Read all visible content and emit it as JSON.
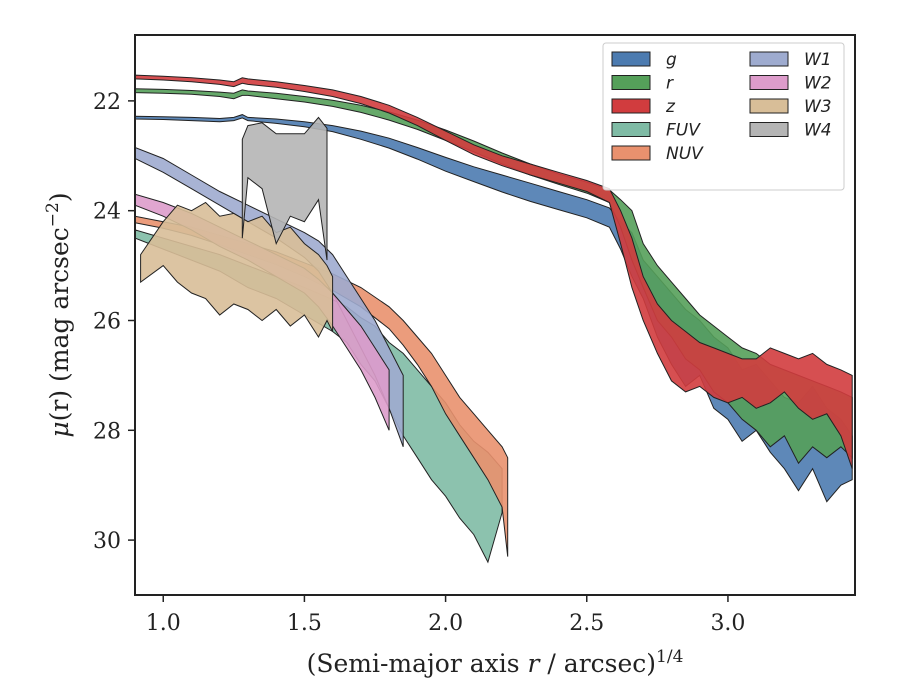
{
  "chart_data": {
    "type": "area",
    "xlabel": "(Semi-major axis r / arcsec)",
    "xlabel_italic_part": "r",
    "xlabel_exponent": "1/4",
    "ylabel": "μ(r) (mag arcsec",
    "ylabel_exponent": "−2",
    "ylabel_close": ")",
    "xlim": [
      0.9,
      3.45
    ],
    "ylim": [
      31.0,
      20.8
    ],
    "y_inverted": true,
    "x_ticks": [
      1.0,
      1.5,
      2.0,
      2.5,
      3.0
    ],
    "x_tick_labels": [
      "1.0",
      "1.5",
      "2.0",
      "2.5",
      "3.0"
    ],
    "y_ticks": [
      22,
      24,
      26,
      28,
      30
    ],
    "y_tick_labels": [
      "22",
      "24",
      "26",
      "28",
      "30"
    ],
    "grid": false,
    "legend_position": "top-right",
    "legend_columns": 2,
    "series": [
      {
        "name": "g",
        "color": "#4c7bb0",
        "x": [
          0.9,
          1.0,
          1.1,
          1.2,
          1.25,
          1.28,
          1.3,
          1.4,
          1.5,
          1.6,
          1.7,
          1.8,
          1.9,
          2.0,
          2.1,
          2.2,
          2.3,
          2.4,
          2.5,
          2.58,
          2.62,
          2.66,
          2.7,
          2.75,
          2.8,
          2.85,
          2.9,
          2.95,
          3.0,
          3.05,
          3.1,
          3.15,
          3.2,
          3.25,
          3.3,
          3.35,
          3.4,
          3.44
        ],
        "y_bright": [
          22.28,
          22.29,
          22.3,
          22.32,
          22.3,
          22.25,
          22.3,
          22.33,
          22.38,
          22.45,
          22.55,
          22.68,
          22.85,
          23.03,
          23.2,
          23.35,
          23.5,
          23.65,
          23.8,
          23.95,
          24.2,
          24.4,
          24.9,
          25.2,
          25.5,
          25.8,
          26.0,
          26.3,
          26.5,
          26.9,
          26.8,
          27.1,
          27.4,
          27.5,
          27.2,
          27.6,
          27.8,
          28.1
        ],
        "y_faint": [
          22.33,
          22.34,
          22.36,
          22.38,
          22.36,
          22.31,
          22.36,
          22.41,
          22.47,
          22.56,
          22.7,
          22.86,
          23.06,
          23.28,
          23.47,
          23.66,
          23.83,
          23.98,
          24.13,
          24.3,
          24.7,
          25.2,
          25.6,
          26.3,
          26.8,
          27.2,
          27.0,
          27.6,
          27.8,
          28.2,
          28.0,
          28.4,
          28.7,
          29.1,
          28.7,
          29.3,
          29.0,
          28.9
        ]
      },
      {
        "name": "r",
        "color": "#55a05a",
        "x": [
          0.9,
          1.0,
          1.1,
          1.2,
          1.25,
          1.28,
          1.3,
          1.4,
          1.5,
          1.6,
          1.7,
          1.8,
          1.9,
          2.0,
          2.1,
          2.2,
          2.3,
          2.4,
          2.5,
          2.58,
          2.62,
          2.66,
          2.7,
          2.75,
          2.8,
          2.85,
          2.9,
          2.95,
          3.0,
          3.05,
          3.1,
          3.15,
          3.2,
          3.25,
          3.3,
          3.35,
          3.4,
          3.44
        ],
        "y_bright": [
          21.78,
          21.79,
          21.81,
          21.84,
          21.86,
          21.8,
          21.82,
          21.86,
          21.92,
          21.99,
          22.08,
          22.2,
          22.35,
          22.53,
          22.73,
          22.95,
          23.15,
          23.33,
          23.48,
          23.62,
          23.8,
          24.0,
          24.6,
          25.0,
          25.3,
          25.6,
          25.9,
          26.1,
          26.3,
          26.5,
          26.6,
          26.8,
          26.9,
          27.0,
          27.1,
          27.2,
          27.3,
          27.4
        ],
        "y_faint": [
          21.85,
          21.86,
          21.88,
          21.92,
          21.96,
          21.9,
          21.9,
          21.96,
          22.02,
          22.1,
          22.21,
          22.35,
          22.52,
          22.72,
          22.93,
          23.15,
          23.35,
          23.52,
          23.68,
          23.85,
          24.3,
          24.9,
          25.4,
          26.0,
          26.3,
          26.7,
          26.9,
          27.3,
          27.5,
          27.8,
          28.0,
          28.3,
          28.1,
          28.6,
          28.3,
          28.5,
          28.3,
          28.5
        ]
      },
      {
        "name": "z",
        "color": "#d13c3e",
        "x": [
          0.9,
          1.0,
          1.1,
          1.2,
          1.25,
          1.28,
          1.3,
          1.4,
          1.5,
          1.6,
          1.7,
          1.8,
          1.9,
          2.0,
          2.1,
          2.2,
          2.3,
          2.4,
          2.5,
          2.58,
          2.62,
          2.66,
          2.7,
          2.75,
          2.8,
          2.85,
          2.9,
          2.95,
          3.0,
          3.05,
          3.1,
          3.15,
          3.2,
          3.25,
          3.3,
          3.35,
          3.4,
          3.44
        ],
        "y_bright": [
          21.53,
          21.55,
          21.58,
          21.62,
          21.65,
          21.58,
          21.6,
          21.65,
          21.72,
          21.8,
          21.92,
          22.08,
          22.3,
          22.55,
          22.8,
          23.0,
          23.15,
          23.3,
          23.45,
          23.6,
          24.0,
          24.5,
          25.2,
          25.7,
          26.0,
          26.2,
          26.4,
          26.5,
          26.6,
          26.7,
          26.7,
          26.5,
          26.6,
          26.7,
          26.6,
          26.8,
          26.9,
          27.0
        ],
        "y_faint": [
          21.6,
          21.62,
          21.65,
          21.7,
          21.74,
          21.68,
          21.7,
          21.75,
          21.83,
          21.92,
          22.05,
          22.22,
          22.45,
          22.72,
          22.98,
          23.18,
          23.35,
          23.5,
          23.65,
          23.85,
          24.6,
          25.4,
          26.0,
          26.6,
          27.1,
          27.3,
          27.2,
          27.4,
          27.5,
          27.4,
          27.6,
          27.5,
          27.3,
          27.6,
          27.8,
          27.7,
          28.1,
          28.7
        ]
      },
      {
        "name": "FUV",
        "color": "#7fbba5",
        "x": [
          0.9,
          1.0,
          1.1,
          1.2,
          1.3,
          1.4,
          1.5,
          1.6,
          1.65,
          1.7,
          1.75,
          1.8,
          1.85,
          1.9,
          1.95,
          2.0,
          2.05,
          2.1,
          2.15,
          2.2
        ],
        "y_bright": [
          24.35,
          24.5,
          24.65,
          24.8,
          25.0,
          25.2,
          25.4,
          25.62,
          25.75,
          25.95,
          26.1,
          26.4,
          26.6,
          26.9,
          27.2,
          27.5,
          27.9,
          28.2,
          28.4,
          28.7
        ],
        "y_faint": [
          24.5,
          24.7,
          24.9,
          25.1,
          25.4,
          25.6,
          25.9,
          26.2,
          26.4,
          26.8,
          27.1,
          27.6,
          28.1,
          28.5,
          28.9,
          29.2,
          29.6,
          29.9,
          30.4,
          29.5
        ]
      },
      {
        "name": "NUV",
        "color": "#e9916e",
        "x": [
          0.9,
          1.0,
          1.1,
          1.2,
          1.3,
          1.4,
          1.5,
          1.6,
          1.7,
          1.8,
          1.85,
          1.9,
          1.95,
          2.0,
          2.05,
          2.1,
          2.15,
          2.2,
          2.22
        ],
        "y_bright": [
          24.1,
          24.2,
          24.3,
          24.45,
          24.6,
          24.75,
          24.95,
          25.15,
          25.4,
          25.75,
          26.0,
          26.3,
          26.6,
          27.0,
          27.4,
          27.7,
          28.0,
          28.3,
          28.5
        ],
        "y_faint": [
          24.22,
          24.32,
          24.45,
          24.62,
          24.8,
          24.98,
          25.2,
          25.45,
          25.75,
          26.15,
          26.45,
          26.8,
          27.2,
          27.7,
          28.1,
          28.5,
          28.9,
          29.4,
          30.3
        ]
      },
      {
        "name": "W1",
        "color": "#9eabcf",
        "x": [
          0.9,
          1.0,
          1.1,
          1.2,
          1.3,
          1.4,
          1.5,
          1.55,
          1.6,
          1.65,
          1.7,
          1.75,
          1.8,
          1.85
        ],
        "y_bright": [
          22.85,
          23.05,
          23.35,
          23.65,
          23.9,
          24.15,
          24.4,
          24.55,
          24.8,
          25.2,
          25.6,
          26.0,
          26.5,
          27.0
        ],
        "y_faint": [
          23.05,
          23.3,
          23.6,
          23.9,
          24.2,
          24.5,
          24.85,
          25.1,
          25.5,
          26.0,
          26.5,
          27.0,
          27.6,
          28.3
        ]
      },
      {
        "name": "W2",
        "color": "#dd9ccb",
        "x": [
          0.9,
          1.0,
          1.1,
          1.2,
          1.3,
          1.4,
          1.5,
          1.55,
          1.6,
          1.65,
          1.7,
          1.75,
          1.8
        ],
        "y_bright": [
          23.7,
          23.85,
          24.05,
          24.3,
          24.55,
          24.8,
          25.05,
          25.25,
          25.5,
          25.8,
          26.1,
          26.5,
          26.9
        ],
        "y_faint": [
          23.9,
          24.1,
          24.35,
          24.65,
          24.9,
          25.2,
          25.5,
          25.75,
          26.1,
          26.5,
          26.9,
          27.4,
          28.0
        ]
      },
      {
        "name": "W3",
        "color": "#d8be98",
        "x": [
          0.92,
          1.0,
          1.05,
          1.1,
          1.15,
          1.2,
          1.25,
          1.3,
          1.35,
          1.4,
          1.45,
          1.5,
          1.55,
          1.58,
          1.6
        ],
        "y_bright": [
          24.8,
          24.2,
          23.9,
          24.0,
          23.85,
          24.1,
          24.05,
          24.2,
          24.1,
          24.4,
          24.3,
          24.6,
          24.8,
          25.0,
          25.2
        ],
        "y_faint": [
          25.3,
          25.0,
          25.3,
          25.5,
          25.6,
          25.9,
          25.7,
          25.8,
          26.0,
          25.8,
          26.1,
          25.9,
          26.3,
          26.0,
          26.2
        ]
      },
      {
        "name": "W4",
        "color": "#b5b5b5",
        "x": [
          1.28,
          1.3,
          1.35,
          1.4,
          1.45,
          1.5,
          1.55,
          1.58
        ],
        "y_bright": [
          22.7,
          22.45,
          22.4,
          22.6,
          22.6,
          22.6,
          22.3,
          22.5
        ],
        "y_faint": [
          24.5,
          23.4,
          23.6,
          24.6,
          24.1,
          24.2,
          23.8,
          24.9
        ]
      }
    ]
  }
}
